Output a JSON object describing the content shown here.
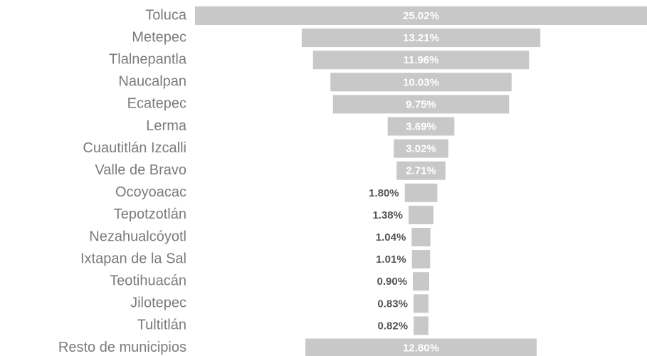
{
  "chart_data": {
    "type": "funnel",
    "categories": [
      "Toluca",
      "Metepec",
      "Tlalnepantla",
      "Naucalpan",
      "Ecatepec",
      "Lerma",
      "Cuautitlán Izcalli",
      "Valle de Bravo",
      "Ocoyoacac",
      "Tepotzotlán",
      "Nezahualcóyotl",
      "Ixtapan de la Sal",
      "Teotihuacán",
      "Jilotepec",
      "Tultitlán",
      "Resto de municipios"
    ],
    "values": [
      25.02,
      13.21,
      11.96,
      10.03,
      9.75,
      3.69,
      3.02,
      2.71,
      1.8,
      1.38,
      1.04,
      1.01,
      0.9,
      0.83,
      0.82,
      12.8
    ],
    "value_labels": [
      "25.02%",
      "13.21%",
      "11.96%",
      "10.03%",
      "9.75%",
      "3.69%",
      "3.02%",
      "2.71%",
      "1.80%",
      "1.38%",
      "1.04%",
      "1.01%",
      "0.90%",
      "0.83%",
      "0.82%",
      "12.80%"
    ],
    "color": "#c8c8c8"
  }
}
